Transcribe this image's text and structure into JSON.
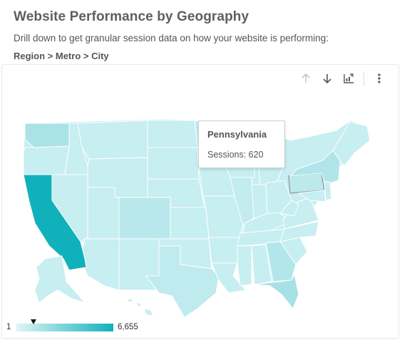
{
  "header": {
    "title": "Website Performance by Geography",
    "subtitle": "Drill down to get granular session data on how your website is performing:",
    "breadcrumb": "Region > Metro > City"
  },
  "toolbar": {
    "buttons": [
      "arrow-up-icon",
      "arrow-down-icon",
      "drill-chart-icon",
      "more-vert-icon"
    ],
    "disabled_color": "#c4c4c4",
    "enabled_color": "#555555"
  },
  "map": {
    "highlight_color": "#10b1bb",
    "base_color": "#c7eef0"
  },
  "tooltip": {
    "state": "Pennsylvania",
    "metric_line": "Sessions: 620"
  },
  "legend": {
    "min": "1",
    "max": "6,655",
    "marker_value": 620
  }
}
